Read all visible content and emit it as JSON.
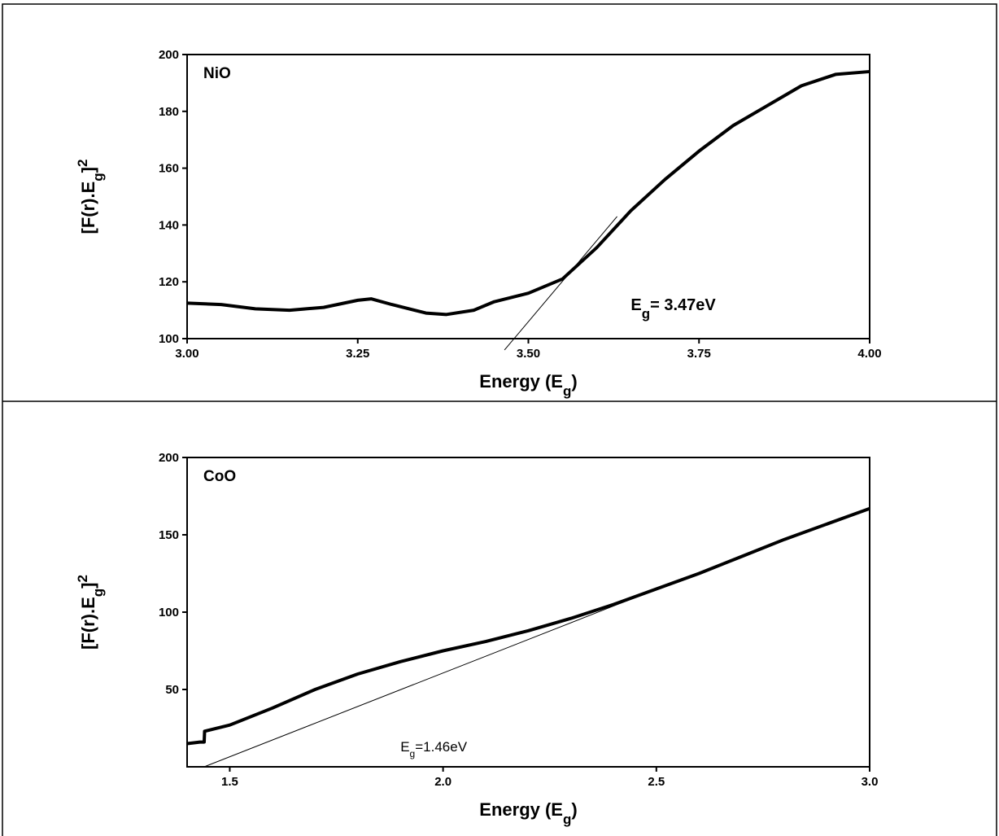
{
  "chart_data": [
    {
      "type": "line",
      "panel_label": "NiO",
      "x": [
        3.0,
        3.05,
        3.1,
        3.15,
        3.2,
        3.25,
        3.27,
        3.3,
        3.35,
        3.38,
        3.42,
        3.45,
        3.5,
        3.55,
        3.6,
        3.65,
        3.7,
        3.75,
        3.8,
        3.85,
        3.9,
        3.95,
        4.0
      ],
      "values": [
        112.5,
        112,
        110.5,
        110,
        111,
        113.5,
        114,
        112,
        109,
        108.5,
        110,
        113,
        116,
        121,
        132,
        145,
        156,
        166,
        175,
        182,
        189,
        193,
        194
      ],
      "color": "#000000",
      "tangent": {
        "x": [
          3.465,
          3.63
        ],
        "y": [
          96,
          143
        ]
      },
      "xlim": [
        3.0,
        4.0
      ],
      "xticks": [
        {
          "value": 3.0,
          "label": "3.00"
        },
        3.25,
        {
          "value": 3.5,
          "label": "3.50"
        },
        3.75,
        {
          "value": 4.0,
          "label": "4.00"
        }
      ],
      "ylim": [
        100,
        200
      ],
      "yticks": [
        100,
        120,
        140,
        160,
        180,
        200
      ],
      "x_label": [
        {
          "text": "Energy (E"
        },
        {
          "text": "g",
          "sub": true
        },
        {
          "text": ")"
        }
      ],
      "y_label": [
        {
          "text": "[F(r).E"
        },
        {
          "text": "g",
          "sub": true
        },
        {
          "text": "]"
        },
        {
          "text": "2",
          "sup": true
        }
      ],
      "annotation": {
        "parts": [
          {
            "text": "E"
          },
          {
            "text": "g",
            "sub": true
          },
          {
            "text": "= 3.47eV"
          }
        ],
        "x": 3.65,
        "y": 110,
        "bold": true
      }
    },
    {
      "type": "line",
      "panel_label": "CoO",
      "x": [
        1.4,
        1.43,
        1.44,
        1.441,
        1.5,
        1.6,
        1.7,
        1.8,
        1.9,
        2.0,
        2.1,
        2.2,
        2.3,
        2.4,
        2.5,
        2.6,
        2.7,
        2.8,
        2.9,
        3.0
      ],
      "values": [
        15,
        16,
        16,
        23,
        27,
        38,
        50,
        60,
        68,
        75,
        81,
        88,
        96,
        105,
        115,
        125,
        136,
        147,
        157,
        167
      ],
      "color": "#000000",
      "tangent": {
        "x": [
          1.44,
          2.52
        ],
        "y": [
          0,
          117
        ]
      },
      "xlim": [
        1.4,
        3.0
      ],
      "xticks": [
        1.5,
        {
          "value": 2.0,
          "label": "2.0"
        },
        2.5,
        {
          "value": 3.0,
          "label": "3.0"
        }
      ],
      "ylim": [
        0,
        200
      ],
      "yticks": [
        50,
        100,
        150,
        200
      ],
      "x_label": [
        {
          "text": "Energy (E"
        },
        {
          "text": "g",
          "sub": true
        },
        {
          "text": ")"
        }
      ],
      "y_label": [
        {
          "text": "[F(r).E"
        },
        {
          "text": "g",
          "sub": true
        },
        {
          "text": "]"
        },
        {
          "text": "2",
          "sup": true
        }
      ],
      "annotation": {
        "parts": [
          {
            "text": "E"
          },
          {
            "text": "g",
            "sub": true
          },
          {
            "text": "=1.46eV"
          }
        ],
        "x": 1.9,
        "y": 10,
        "bold": false
      }
    }
  ]
}
